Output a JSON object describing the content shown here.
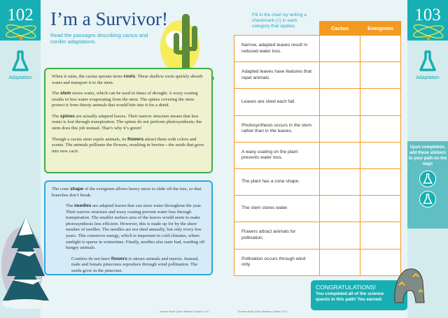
{
  "left_page": {
    "page_number": "102",
    "section": "Adaptation",
    "title": "I’m a Survivor!",
    "intro": "Read the passages describing cactus and conifer adaptations.",
    "cactus_passage": [
      [
        "When it rains, the cactus sprouts more ",
        "roots",
        ". These shallow roots quickly absorb water and transport it to the stem."
      ],
      [
        "The ",
        "stem",
        " stores water, which can be used in times of drought. A waxy coating results in less water evaporating from the stem. The spines covering the stem protect it from thirsty animals that would bite into it for a drink."
      ],
      [
        "The ",
        "spines",
        " are actually adapted leaves. Their narrow structure means that less water is lost through transpiration. The spines do not perform photosynthesis; the stem does this job instead. That’s why it’s green!"
      ],
      [
        "Though a cactus stem repels animals, its ",
        "flowers",
        " attract them with colors and scents. The animals pollinate the flowers, resulting in berries—the seeds that grow into new cacti."
      ]
    ],
    "evergreen_passage": [
      [
        "The cone ",
        "shape",
        " of the evergreen allows heavy snow to slide off the tree, so that branches don’t break."
      ],
      [
        "The ",
        "needles",
        " are adapted leaves that can store water throughout the year. Their narrow structure and waxy coating prevent water loss through transpiration. The smaller surface area of the leaves would seem to make photosynthesis less efficient. However, this is made up for by the sheer number of needles. The needles are not shed annually, but only every few years. This conserves energy, which is important in cold climates, where sunlight is sparse in wintertime. Finally, needles also taste bad, warding off hungry animals."
      ],
      [
        "Conifers do not have ",
        "flowers",
        " to attract animals and insects. Instead, male and female pinecones reproduce through wind pollination. The seeds grow in the pinecone."
      ]
    ],
    "footer": "Summer Brain Quest: Between Grades 4 & 5"
  },
  "right_page": {
    "page_number": "103",
    "section": "Adaptation",
    "instructions": "Fill in the chart by writing a checkmark (√) in each category that applies.",
    "columns": [
      "Cactus",
      "Evergreen"
    ],
    "rows": [
      "Narrow, adapted leaves result in reduced water loss.",
      "Adapted leaves have features that repel animals.",
      "Leaves are shed each fall.",
      "Photosynthesis occurs in the stem rather than in the leaves.",
      "A waxy coating on the plant prevents water loss.",
      "The plant has a cone shape.",
      "The stem stores water.",
      "Flowers attract animals for pollination.",
      "Pollination occurs through wind only."
    ],
    "sticker_text": "Upon completion, add these stickers to your path on the map!",
    "congrats_title": "CONGRATULATIONS!",
    "congrats_text": "You completed all of the science quests in this path! You earned:",
    "footer": "Summer Brain Quest: Between Grades 4 & 5"
  },
  "colors": {
    "teal": "#17afb3",
    "orange": "#f39a21",
    "green": "#3fae4a",
    "blue": "#2fa6df",
    "title": "#214a8c"
  }
}
